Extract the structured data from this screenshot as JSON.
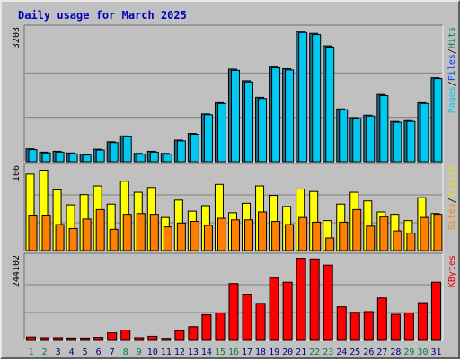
{
  "chart_data": {
    "type": "bar",
    "title": "Daily usage for March 2025",
    "categories": [
      "1",
      "2",
      "3",
      "4",
      "5",
      "6",
      "7",
      "8",
      "9",
      "10",
      "11",
      "12",
      "13",
      "14",
      "15",
      "16",
      "17",
      "18",
      "19",
      "20",
      "21",
      "22",
      "23",
      "24",
      "25",
      "26",
      "27",
      "28",
      "29",
      "30",
      "31"
    ],
    "weekend_days": [
      "1",
      "2",
      "8",
      "9",
      "15",
      "16",
      "22",
      "23",
      "29",
      "30"
    ],
    "panels": [
      {
        "name": "hits",
        "max_label": "3203",
        "ylim": [
          0,
          3203
        ],
        "legend": [
          {
            "text": "Pages",
            "color": "#00c8f0"
          },
          {
            "text": "/",
            "color": "#000000"
          },
          {
            "text": "Files",
            "color": "#0040ff"
          },
          {
            "text": "/",
            "color": "#000000"
          },
          {
            "text": "Hits",
            "color": "#008040"
          }
        ],
        "series": [
          {
            "name": "Hits",
            "color": "#1e6e8a",
            "values": [
              310,
              230,
              250,
              210,
              180,
              300,
              480,
              620,
              200,
              250,
              200,
              520,
              680,
              1150,
              1420,
              2230,
              1950,
              1550,
              2290,
              2240,
              3140,
              3090,
              2790,
              1270,
              1060,
              1120,
              1620,
              970,
              990,
              1420,
              2020
            ]
          },
          {
            "name": "Pages",
            "color": "#00c8f0",
            "values": [
              290,
              210,
              230,
              190,
              160,
              280,
              460,
              600,
              180,
              230,
              180,
              500,
              660,
              1130,
              1400,
              2200,
              1920,
              1520,
              2260,
              2210,
              3110,
              3060,
              2760,
              1250,
              1040,
              1100,
              1590,
              950,
              970,
              1400,
              2000
            ]
          }
        ]
      },
      {
        "name": "visits",
        "max_label": "106",
        "ylim": [
          0,
          106
        ],
        "legend": [
          {
            "text": "Sites",
            "color": "#ff8000"
          },
          {
            "text": "/",
            "color": "#000000"
          },
          {
            "text": "Visits",
            "color": "#e8e800"
          }
        ],
        "series": [
          {
            "name": "Visits",
            "color": "#ffff00",
            "values": [
              97,
              102,
              77,
              58,
              71,
              82,
              59,
              88,
              74,
              80,
              42,
              64,
              50,
              57,
              84,
              48,
              60,
              82,
              70,
              56,
              78,
              75,
              38,
              59,
              74,
              63,
              49,
              46,
              38,
              67,
              47
            ]
          },
          {
            "name": "Sites",
            "color": "#ff8000",
            "values": [
              45,
              45,
              33,
              28,
              40,
              52,
              27,
              46,
              47,
              46,
              30,
              35,
              37,
              32,
              41,
              39,
              39,
              49,
              37,
              33,
              42,
              36,
              16,
              36,
              52,
              31,
              43,
              25,
              22,
              42,
              46
            ]
          }
        ]
      },
      {
        "name": "kbytes",
        "max_label": "244102",
        "ylim": [
          0,
          244102
        ],
        "legend": [
          {
            "text": "KBytes",
            "color": "#e00000"
          }
        ],
        "series": [
          {
            "name": "KBytes",
            "color": "#ff0000",
            "values": [
              10000,
              8000,
              8000,
              7000,
              7000,
              9000,
              22000,
              30000,
              8000,
              12000,
              6000,
              28000,
              40000,
              75000,
              80000,
              166000,
              135000,
              108000,
              182000,
              170000,
              240000,
              238000,
              220000,
              98000,
              82000,
              84000,
              124000,
              76000,
              80000,
              110000,
              170000
            ]
          }
        ]
      }
    ]
  }
}
